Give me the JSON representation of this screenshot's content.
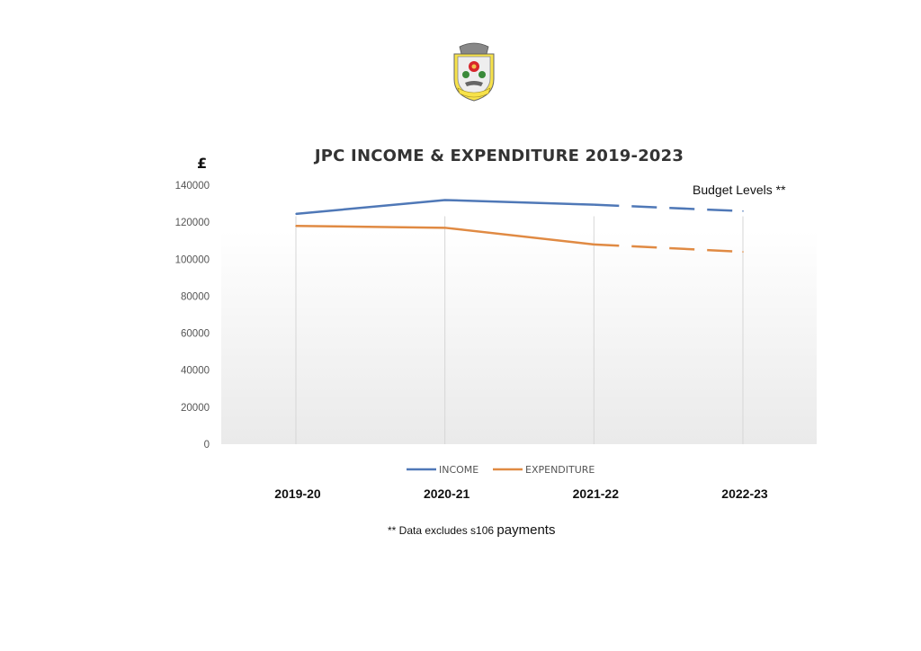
{
  "chart_data": {
    "type": "line",
    "title": "JPC INCOME & EXPENDITURE 2019-2023",
    "ylabel": "£",
    "xlabel": "",
    "categories": [
      "2019-20",
      "2020-21",
      "2021-22",
      "2022-23"
    ],
    "ylim": [
      0,
      140000
    ],
    "yticks": [
      "0",
      "20000",
      "40000",
      "60000",
      "80000",
      "100000",
      "120000",
      "140000"
    ],
    "grid": "vertical",
    "legend_position": "bottom",
    "series": [
      {
        "name": "INCOME",
        "color": "#4f78b7",
        "values": [
          124500,
          132000,
          129500,
          126000
        ]
      },
      {
        "name": "EXPENDITURE",
        "color": "#e08a43",
        "values": [
          118000,
          117000,
          108000,
          104000
        ]
      }
    ],
    "dashed_from_category": "2021-22",
    "annotation": "Budget Levels **",
    "footnote_prefix": "** Data excludes s106",
    "footnote_suffix": "payments"
  },
  "crest_icon": "council-crest-icon"
}
